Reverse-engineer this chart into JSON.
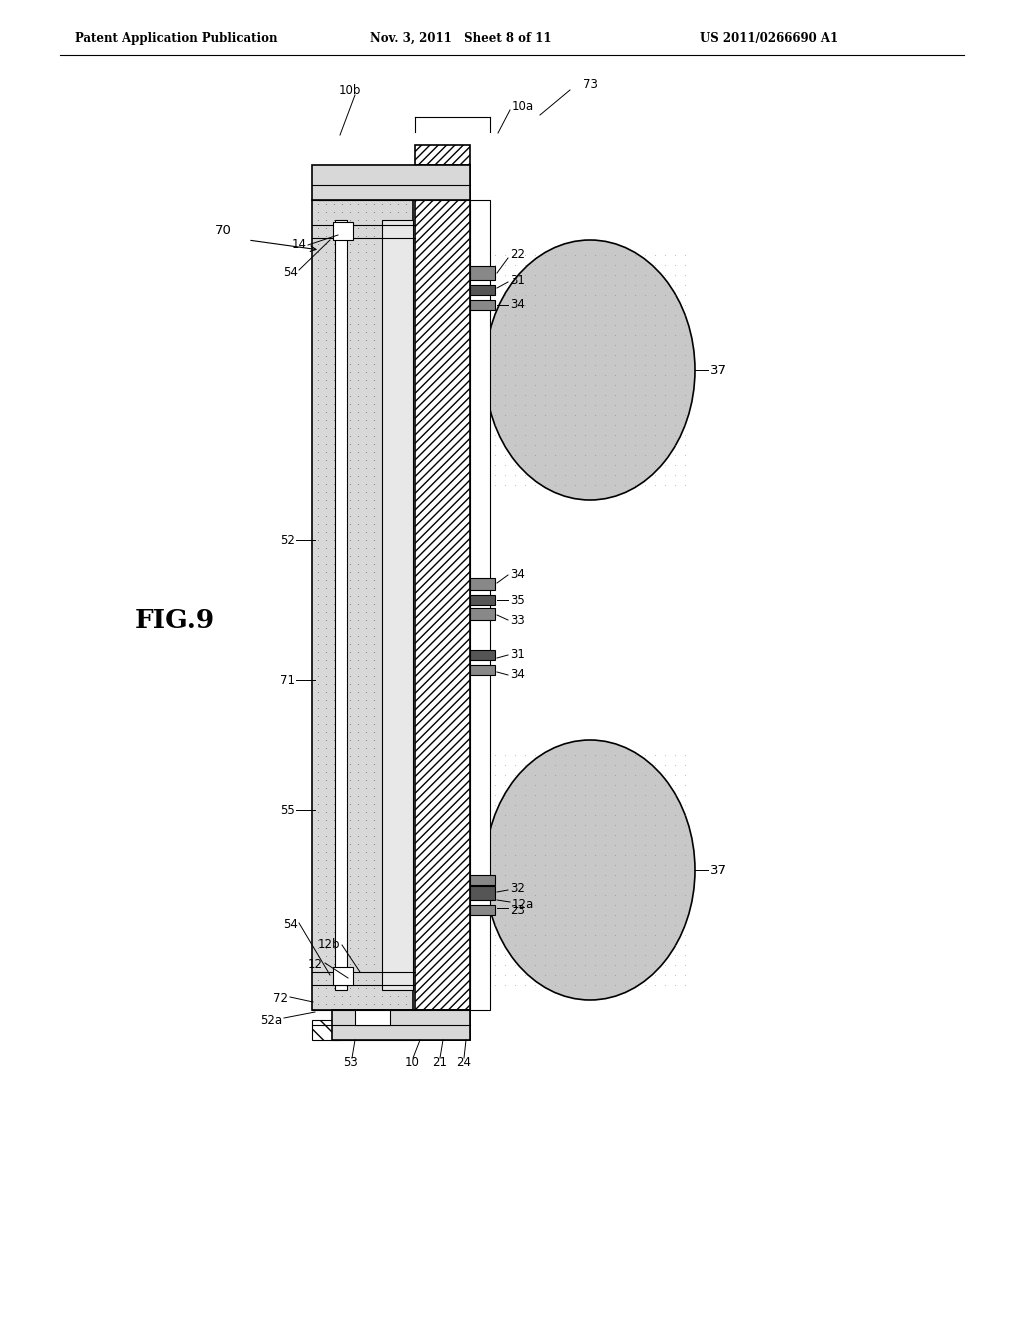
{
  "header_left": "Patent Application Publication",
  "header_mid": "Nov. 3, 2011   Sheet 8 of 11",
  "header_right": "US 2011/0266690 A1",
  "fig_label": "FIG.9",
  "bg_color": "#ffffff",
  "line_color": "#000000",
  "stipple_color": "#aaaaaa",
  "hatch_fill": "#ffffff",
  "solder_fill": "#c0c0c0",
  "dark_fill": "#555555"
}
